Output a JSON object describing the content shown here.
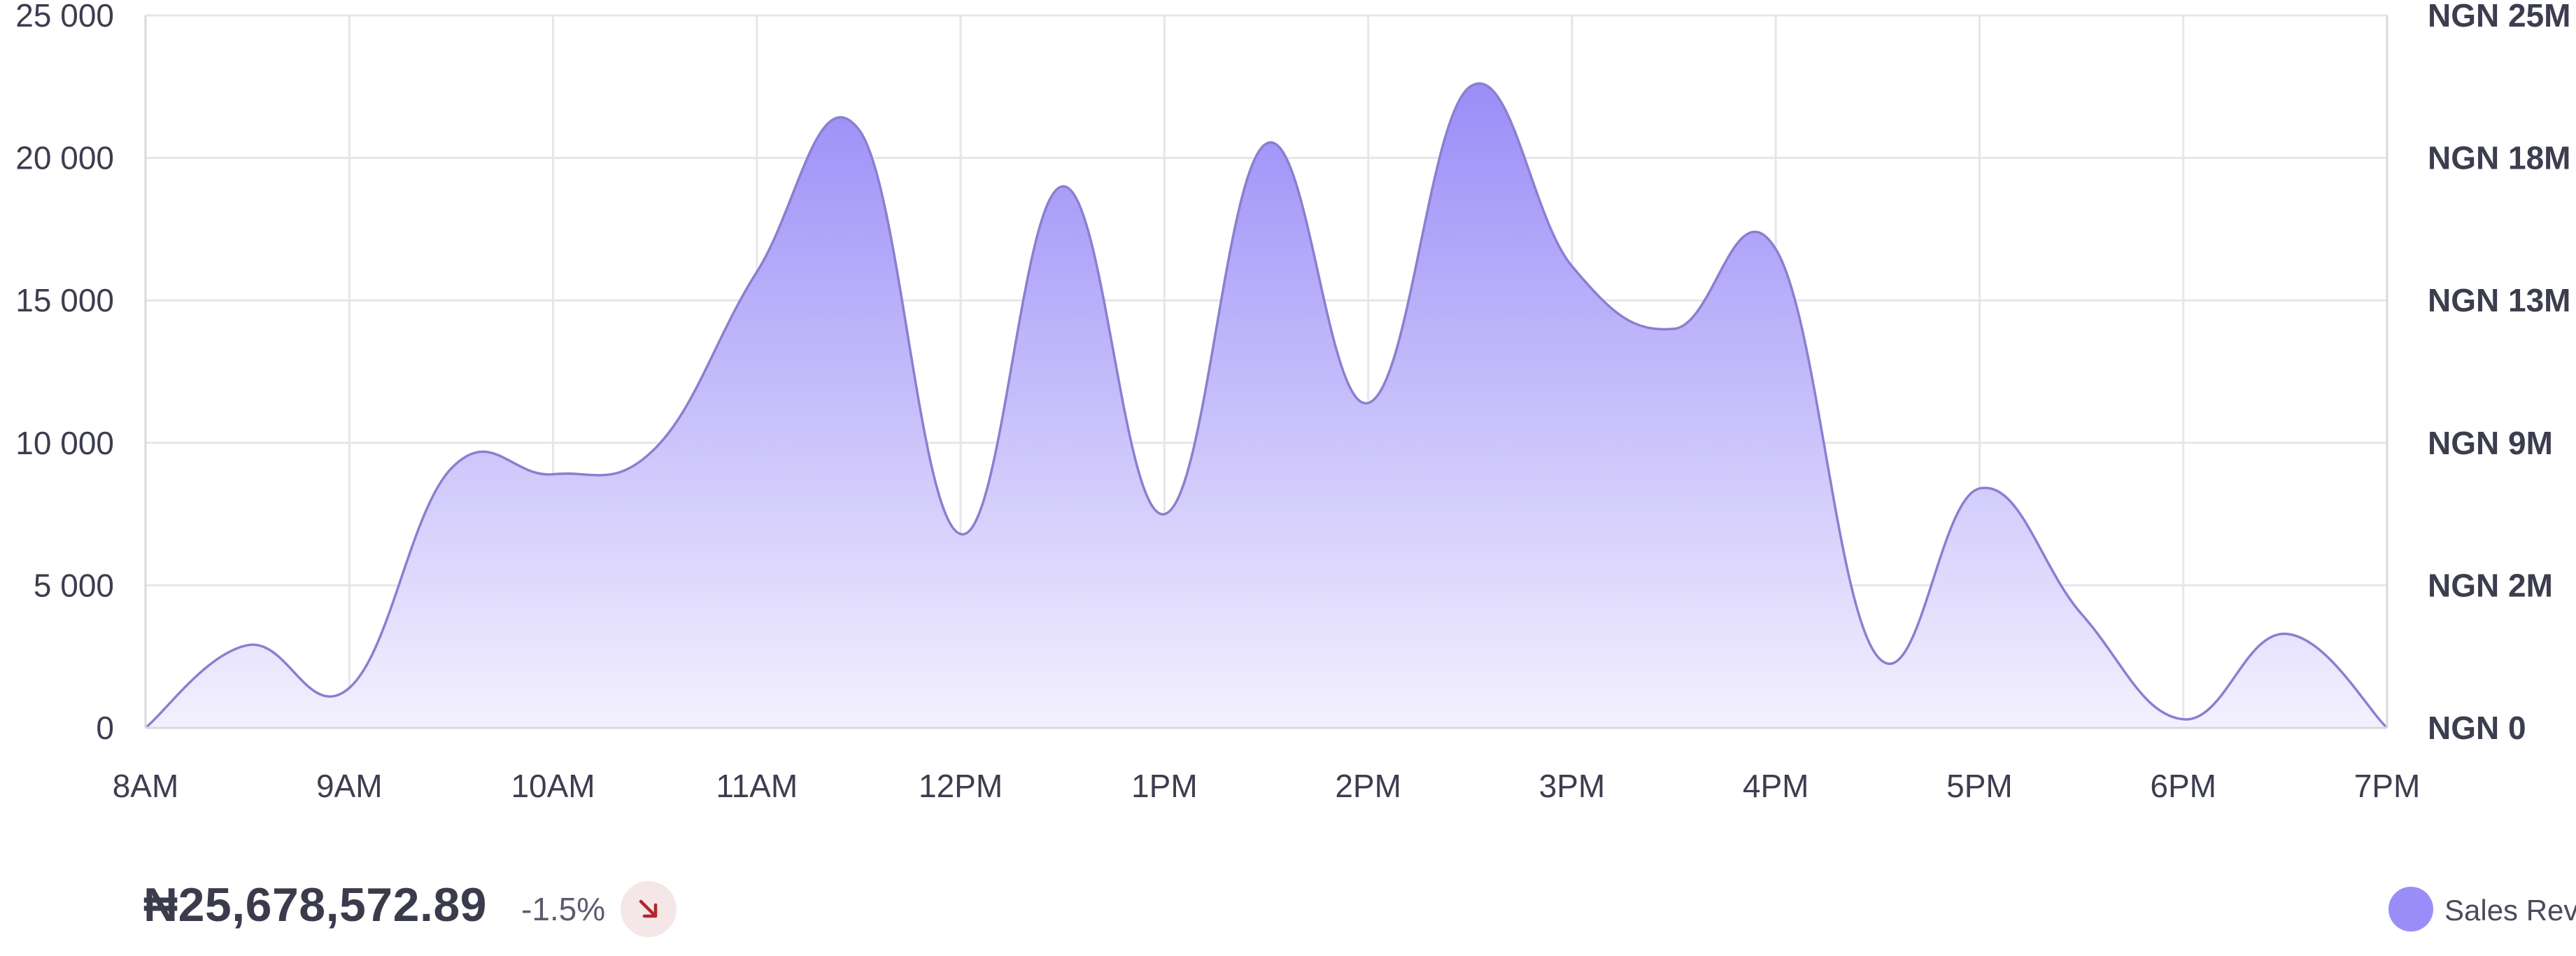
{
  "chart_data": {
    "type": "area",
    "x": [
      "8AM",
      "8:30AM",
      "9AM",
      "9:30AM",
      "10AM",
      "10:30AM",
      "11AM",
      "11:30AM",
      "12PM",
      "12:30PM",
      "1PM",
      "1:30PM",
      "2PM",
      "2:30PM",
      "3PM",
      "3:30PM",
      "4PM",
      "4:30PM",
      "5PM",
      "5:30PM",
      "6PM",
      "6:30PM",
      "7PM"
    ],
    "x_tick_labels": [
      "8AM",
      "9AM",
      "10AM",
      "11AM",
      "12PM",
      "1PM",
      "2PM",
      "3PM",
      "4PM",
      "5PM",
      "6PM",
      "7PM"
    ],
    "series": [
      {
        "name": "Sales Revenue",
        "values": [
          0,
          2900,
          1400,
          9100,
          8900,
          9800,
          16000,
          21000,
          6800,
          19000,
          7500,
          20500,
          11400,
          22500,
          16200,
          14000,
          16800,
          2500,
          8400,
          4000,
          300,
          3300,
          0
        ]
      }
    ],
    "y_left": {
      "ticks": [
        "0",
        "5 000",
        "10 000",
        "15 000",
        "20 000",
        "25 000"
      ],
      "ylim": [
        0,
        25000
      ]
    },
    "y_right": {
      "ticks": [
        "NGN 0",
        "NGN 2M",
        "NGN 9M",
        "NGN 13M",
        "NGN 18M",
        "NGN 25M"
      ]
    },
    "grid": true,
    "legend": "bottom-right",
    "colors": {
      "line": "#8a7fd0",
      "fill_top": "#9b8df7",
      "fill_bottom": "#f3f1fe",
      "grid": "#e6e6ea",
      "legend_dot": "#9b8df7"
    }
  },
  "summary": {
    "total": "₦25,678,572.89",
    "change": "-1.5%",
    "trend_icon": "arrow-down-right-icon",
    "trend_color": "#b3262d",
    "trend_bg": "#f5e6e7"
  },
  "legend": {
    "label": "Sales Revenue"
  }
}
